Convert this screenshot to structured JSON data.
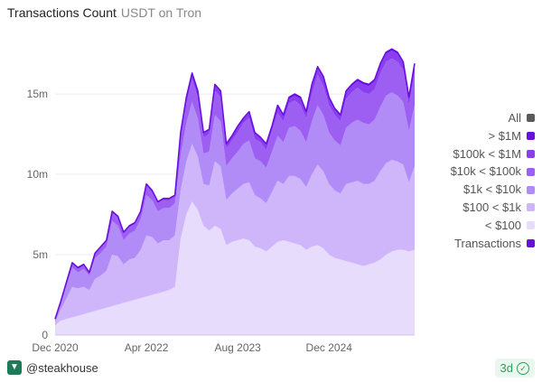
{
  "header": {
    "title": "Transactions Count",
    "subtitle": "USDT on Tron"
  },
  "footer": {
    "user": "@steakhouse",
    "freshness": "3d"
  },
  "chart_data": {
    "type": "area",
    "stacked": true,
    "title": "Transactions Count",
    "subtitle": "USDT on Tron",
    "ylim": [
      0,
      18.6
    ],
    "yunit": "m",
    "yticks": [
      {
        "v": 0,
        "label": "0"
      },
      {
        "v": 5,
        "label": "5m"
      },
      {
        "v": 10,
        "label": "10m"
      },
      {
        "v": 15,
        "label": "15m"
      }
    ],
    "xticks": [
      {
        "i": 0,
        "label": "Dec 2020"
      },
      {
        "i": 16,
        "label": "Apr 2022"
      },
      {
        "i": 32,
        "label": "Aug 2023"
      },
      {
        "i": 48,
        "label": "Dec 2024"
      }
    ],
    "grid": true,
    "legend_position": "right",
    "legend": [
      {
        "label": "All",
        "color": "#5a5a5a"
      },
      {
        "label": "> $1M",
        "color": "#6a0fe0"
      },
      {
        "label": "$100k < $1M",
        "color": "#8a3ef0"
      },
      {
        "label": "$10k < $100k",
        "color": "#9d5ef2"
      },
      {
        "label": "$1k < $10k",
        "color": "#b28cf6"
      },
      {
        "label": "$100 < $1k",
        "color": "#cfb6fa"
      },
      {
        "label": "< $100",
        "color": "#e7dcfc"
      },
      {
        "label": "Transactions",
        "color": "#6a0fe0"
      }
    ],
    "x": [
      "2020-12",
      "2021-01",
      "2021-02",
      "2021-03",
      "2021-04",
      "2021-05",
      "2021-06",
      "2021-07",
      "2021-08",
      "2021-09",
      "2021-10",
      "2021-11",
      "2021-12",
      "2022-01",
      "2022-02",
      "2022-03",
      "2022-04",
      "2022-05",
      "2022-06",
      "2022-07",
      "2022-08",
      "2022-09",
      "2022-10",
      "2022-11",
      "2022-12",
      "2023-01",
      "2023-02",
      "2023-03",
      "2023-04",
      "2023-05",
      "2023-06",
      "2023-07",
      "2023-08",
      "2023-09",
      "2023-10",
      "2023-11",
      "2023-12",
      "2024-01",
      "2024-02",
      "2024-03",
      "2024-04",
      "2024-05",
      "2024-06",
      "2024-07",
      "2024-08",
      "2024-09",
      "2024-10",
      "2024-11",
      "2024-12",
      "2025-01",
      "2025-02",
      "2025-03",
      "2025-04",
      "2025-05",
      "2025-06",
      "2025-07",
      "2025-08",
      "2025-09",
      "2025-10",
      "2025-11",
      "2025-12",
      "2026-01",
      "2026-02",
      "2026-03"
    ],
    "series": [
      {
        "name": "< $100",
        "color": "#e7dcfc",
        "values": [
          0.6,
          0.9,
          1.0,
          1.1,
          1.2,
          1.3,
          1.4,
          1.5,
          1.6,
          1.7,
          1.8,
          1.9,
          2.0,
          2.1,
          2.2,
          2.3,
          2.4,
          2.5,
          2.6,
          2.7,
          2.8,
          3.0,
          6.0,
          7.5,
          8.3,
          7.8,
          6.8,
          6.5,
          6.8,
          6.6,
          5.6,
          5.8,
          5.9,
          6.0,
          5.9,
          5.5,
          5.4,
          5.2,
          5.5,
          5.8,
          5.9,
          5.8,
          5.7,
          5.6,
          5.3,
          5.5,
          5.6,
          5.4,
          5.0,
          4.8,
          4.7,
          4.6,
          4.5,
          4.4,
          4.3,
          4.4,
          4.5,
          4.7,
          5.0,
          5.2,
          5.3,
          5.3,
          5.2,
          5.3
        ]
      },
      {
        "name": "$100 < $1k",
        "color": "#cfb6fa",
        "values": [
          0.2,
          0.7,
          1.3,
          1.9,
          1.7,
          1.7,
          1.4,
          2.0,
          2.1,
          2.3,
          3.2,
          3.0,
          2.4,
          2.6,
          2.6,
          3.0,
          3.8,
          3.6,
          3.1,
          3.2,
          3.1,
          3.2,
          3.0,
          3.3,
          3.6,
          3.3,
          2.6,
          2.8,
          4.0,
          3.9,
          2.8,
          3.0,
          3.2,
          3.4,
          3.6,
          3.2,
          3.1,
          3.0,
          3.4,
          3.8,
          3.5,
          4.1,
          4.2,
          4.1,
          3.9,
          4.5,
          5.0,
          4.8,
          4.4,
          4.2,
          4.1,
          4.8,
          5.0,
          5.2,
          5.1,
          5.0,
          5.1,
          5.5,
          5.7,
          5.7,
          5.5,
          5.3,
          4.3,
          5.2
        ]
      },
      {
        "name": "$1k < $10k",
        "color": "#b28cf6",
        "values": [
          0.1,
          0.4,
          0.8,
          1.2,
          1.0,
          1.1,
          0.9,
          1.3,
          1.4,
          1.5,
          2.1,
          1.9,
          1.5,
          1.6,
          1.7,
          1.9,
          2.5,
          2.3,
          2.0,
          2.0,
          2.0,
          2.0,
          2.2,
          2.4,
          2.6,
          2.4,
          1.9,
          2.1,
          2.9,
          2.8,
          2.1,
          2.2,
          2.3,
          2.5,
          2.6,
          2.3,
          2.3,
          2.2,
          2.5,
          2.8,
          2.6,
          3.0,
          3.1,
          3.0,
          2.8,
          3.3,
          3.7,
          3.5,
          3.2,
          3.1,
          3.0,
          3.5,
          3.7,
          3.8,
          3.8,
          3.7,
          3.8,
          4.0,
          4.2,
          4.2,
          4.1,
          3.9,
          3.2,
          3.8
        ]
      },
      {
        "name": "$10k < $100k",
        "color": "#9d5ef2",
        "values": [
          0.1,
          0.1,
          0.2,
          0.3,
          0.2,
          0.2,
          0.2,
          0.3,
          0.3,
          0.3,
          0.5,
          0.5,
          0.4,
          0.4,
          0.4,
          0.4,
          0.6,
          0.5,
          0.5,
          0.5,
          0.5,
          0.4,
          1.1,
          1.2,
          1.4,
          1.3,
          1.0,
          1.1,
          1.5,
          1.5,
          1.1,
          1.1,
          1.2,
          1.3,
          1.4,
          1.2,
          1.2,
          1.1,
          1.3,
          1.4,
          1.3,
          1.5,
          1.6,
          1.6,
          1.5,
          1.7,
          1.9,
          1.8,
          1.7,
          1.6,
          1.5,
          1.8,
          1.9,
          2.0,
          1.9,
          1.9,
          1.9,
          2.1,
          2.1,
          2.1,
          2.1,
          2.0,
          1.6,
          2.0
        ]
      },
      {
        "name": "$100k < $1M",
        "color": "#8a3ef0",
        "values": [
          0,
          0,
          0,
          0,
          0.1,
          0.1,
          0,
          0,
          0.1,
          0.1,
          0.1,
          0.1,
          0.1,
          0.1,
          0.1,
          0.1,
          0.1,
          0.1,
          0.1,
          0.1,
          0.1,
          0.1,
          0.3,
          0.3,
          0.3,
          0.3,
          0.2,
          0.3,
          0.3,
          0.3,
          0.3,
          0.3,
          0.3,
          0.3,
          0.3,
          0.3,
          0.3,
          0.3,
          0.3,
          0.4,
          0.3,
          0.3,
          0.3,
          0.4,
          0.3,
          0.5,
          0.4,
          0.5,
          0.4,
          0.3,
          0.3,
          0.4,
          0.4,
          0.4,
          0.5,
          0.5,
          0.5,
          0.5,
          0.5,
          0.5,
          0.5,
          0.4,
          0.4,
          0.5
        ]
      },
      {
        "name": "> $1M",
        "color": "#6a0fe0",
        "values": [
          0,
          0,
          0,
          0,
          0,
          0,
          0,
          0,
          0,
          0,
          0,
          0,
          0,
          0,
          0,
          0,
          0,
          0,
          0,
          0,
          0,
          0,
          0,
          0.1,
          0.1,
          0.1,
          0.1,
          0,
          0.1,
          0.1,
          0,
          0,
          0.1,
          0,
          0.1,
          0.1,
          0,
          0.1,
          0,
          0.1,
          0.1,
          0.1,
          0.1,
          0.1,
          0.1,
          0.1,
          0.1,
          0.1,
          0.1,
          0.1,
          0.1,
          0.1,
          0.1,
          0.1,
          0.1,
          0.1,
          0.1,
          0.1,
          0.1,
          0.1,
          0.1,
          0.1,
          0.1,
          0.1
        ]
      }
    ],
    "line": {
      "name": "Transactions",
      "color": "#6a0fe0",
      "values": [
        1.0,
        2.1,
        3.3,
        4.5,
        4.2,
        4.4,
        3.9,
        5.1,
        5.5,
        5.9,
        7.7,
        7.4,
        6.4,
        6.8,
        7.0,
        7.7,
        9.4,
        9.0,
        8.3,
        8.5,
        8.5,
        8.7,
        12.6,
        14.8,
        16.3,
        15.2,
        12.6,
        12.8,
        15.6,
        15.2,
        11.9,
        12.4,
        13.0,
        13.5,
        13.9,
        12.6,
        12.3,
        11.9,
        13.0,
        14.3,
        13.7,
        14.8,
        15.0,
        14.8,
        13.9,
        15.6,
        16.7,
        16.1,
        14.8,
        14.1,
        13.7,
        15.2,
        15.6,
        15.9,
        15.7,
        15.6,
        15.9,
        16.9,
        17.6,
        17.8,
        17.6,
        17.0,
        14.8,
        16.9
      ]
    }
  }
}
